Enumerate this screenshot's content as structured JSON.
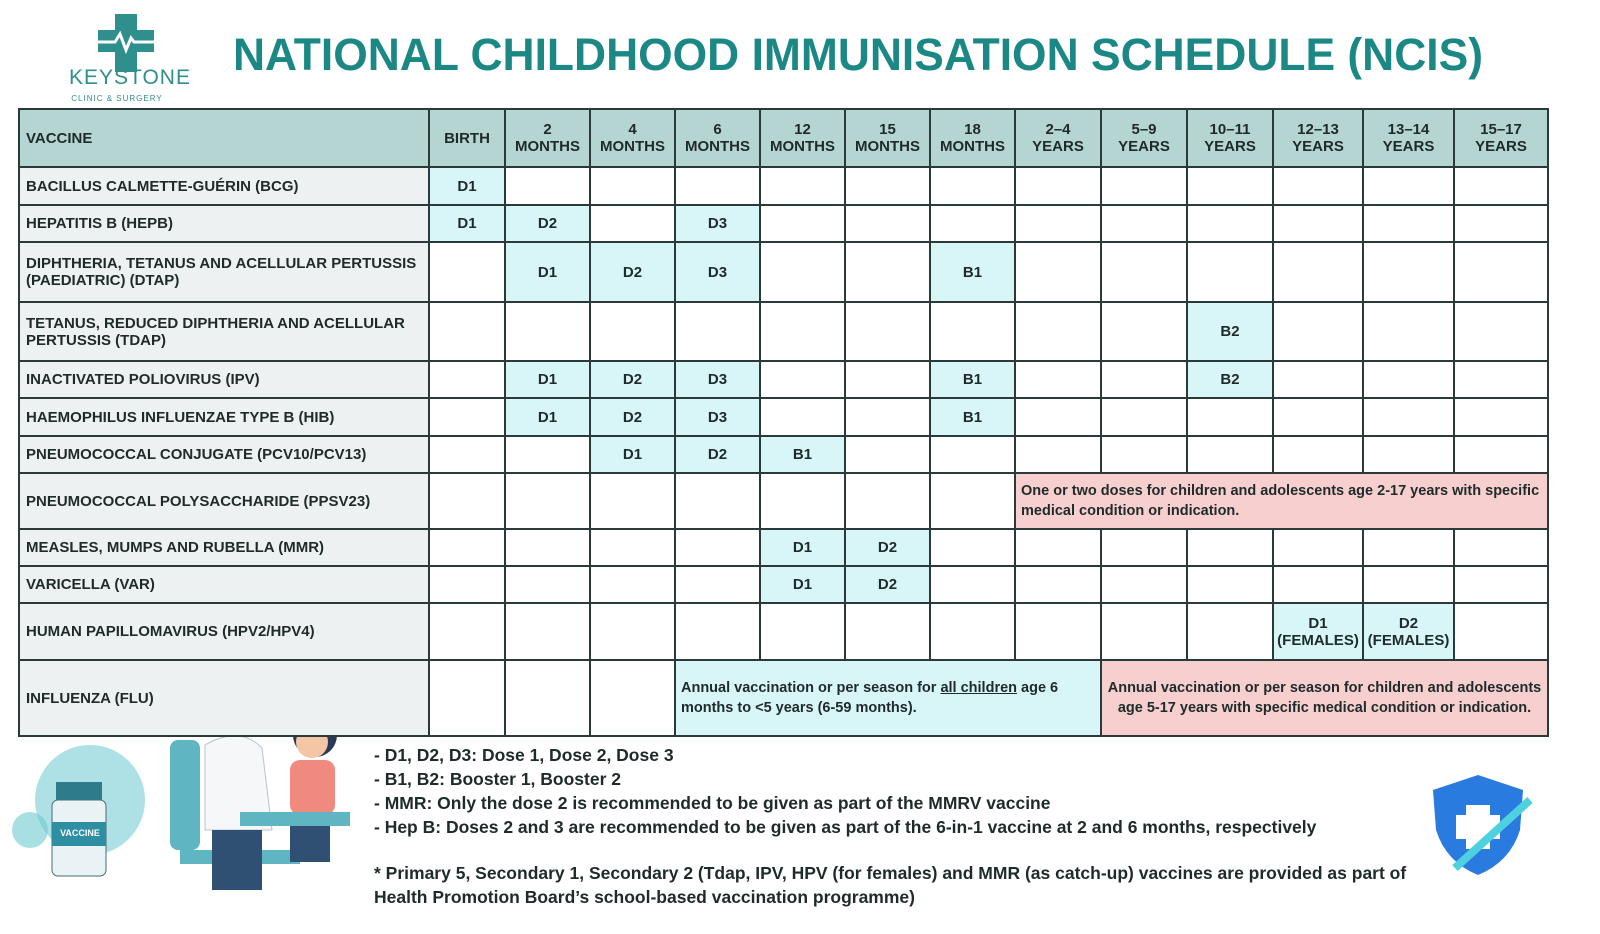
{
  "header": {
    "logo_name": "KEYSTONE",
    "logo_sub": "CLINIC & SURGERY",
    "title": "NATIONAL CHILDHOOD IMMUNISATION SCHEDULE (NCIS)"
  },
  "table": {
    "header_vaccine": "VACCINE",
    "header_color": "#b5d5d2",
    "dose_color": "#d8f6f8",
    "columns": [
      "BIRTH",
      "2\nMONTHS",
      "4\nMONTHS",
      "6\nMONTHS",
      "12\nMONTHS",
      "15\nMONTHS",
      "18\nMONTHS",
      "2–4\nYEARS",
      "5–9\nYEARS",
      "10–11\nYEARS",
      "12–13\nYEARS",
      "13–14\nYEARS",
      "15–17\nYEARS"
    ],
    "rows": [
      {
        "name": "BACILLUS CALMETTE-GUÉRIN (BCG)",
        "cells": [
          "D1",
          null,
          null,
          null,
          null,
          null,
          null,
          null,
          null,
          null,
          null,
          null,
          null
        ]
      },
      {
        "name": "HEPATITIS B (HEPB)",
        "cells": [
          "D1",
          "D2",
          null,
          "D3",
          null,
          null,
          null,
          null,
          null,
          null,
          null,
          null,
          null
        ]
      },
      {
        "name": "DIPHTHERIA, TETANUS AND ACELLULAR PERTUSSIS (PAEDIATRIC) (DTAP)",
        "cells": [
          null,
          "D1",
          "D2",
          "D3",
          null,
          null,
          "B1",
          null,
          null,
          null,
          null,
          null,
          null
        ]
      },
      {
        "name": "TETANUS, REDUCED DIPHTHERIA AND ACELLULAR PERTUSSIS (TDAP)",
        "cells": [
          null,
          null,
          null,
          null,
          null,
          null,
          null,
          null,
          null,
          "B2",
          null,
          null,
          null
        ]
      },
      {
        "name": "INACTIVATED POLIOVIRUS (IPV)",
        "cells": [
          null,
          "D1",
          "D2",
          "D3",
          null,
          null,
          "B1",
          null,
          null,
          "B2",
          null,
          null,
          null
        ]
      },
      {
        "name": "HAEMOPHILUS INFLUENZAE TYPE B (HIB)",
        "cells": [
          null,
          "D1",
          "D2",
          "D3",
          null,
          null,
          "B1",
          null,
          null,
          null,
          null,
          null,
          null
        ]
      },
      {
        "name": "PNEUMOCOCCAL CONJUGATE (PCV10/PCV13)",
        "cells": [
          null,
          null,
          "D1",
          "D2",
          "B1",
          null,
          null,
          null,
          null,
          null,
          null,
          null,
          null
        ]
      },
      {
        "name": "PNEUMOCOCCAL POLYSACCHARIDE (PPSV23)",
        "cells": [
          null,
          null,
          null,
          null,
          null,
          null,
          null,
          {
            "text": "One or two doses for children and adolescents age 2-17 years with specific medical condition or indication.",
            "span": 6,
            "color": "#f8cfcf"
          }
        ]
      },
      {
        "name": "MEASLES, MUMPS AND RUBELLA (MMR)",
        "cells": [
          null,
          null,
          null,
          null,
          "D1",
          "D2",
          null,
          null,
          null,
          null,
          null,
          null,
          null
        ]
      },
      {
        "name": "VARICELLA (VAR)",
        "cells": [
          null,
          null,
          null,
          null,
          "D1",
          "D2",
          null,
          null,
          null,
          null,
          null,
          null,
          null
        ]
      },
      {
        "name": "HUMAN PAPILLOMAVIRUS (HPV2/HPV4)",
        "cells": [
          null,
          null,
          null,
          null,
          null,
          null,
          null,
          null,
          null,
          null,
          "D1\n(FEMALES)",
          "D2\n(FEMALES)",
          null
        ]
      },
      {
        "name": "INFLUENZA (FLU)",
        "cells": [
          null,
          null,
          null,
          {
            "text_before": "Annual vaccination or per season for ",
            "text_underlined": "all children",
            "text_after": " age 6 months to <5 years (6-59 months).",
            "span": 5,
            "color": "#d8f6f8"
          },
          {
            "text": "Annual vaccination or per season for children and adolescents age 5-17 years with specific medical condition or indication.",
            "span": 5,
            "color": "#f8cfcf"
          }
        ]
      }
    ]
  },
  "legend": [
    "- D1, D2, D3: Dose 1, Dose 2, Dose 3",
    "- B1, B2: Booster 1, Booster 2",
    "- MMR: Only the dose 2 is recommended to be given as part of the MMRV vaccine",
    "- Hep B: Doses 2 and 3 are recommended to be given as part of the 6-in-1 vaccine at 2 and 6 months, respectively"
  ],
  "footnote": "* Primary 5, Secondary 1, Secondary 2 (Tdap, IPV, HPV (for females) and MMR (as catch-up) vaccines are provided as part of Health Promotion Board’s school-based vaccination programme)",
  "vial_label": "VACCINE"
}
